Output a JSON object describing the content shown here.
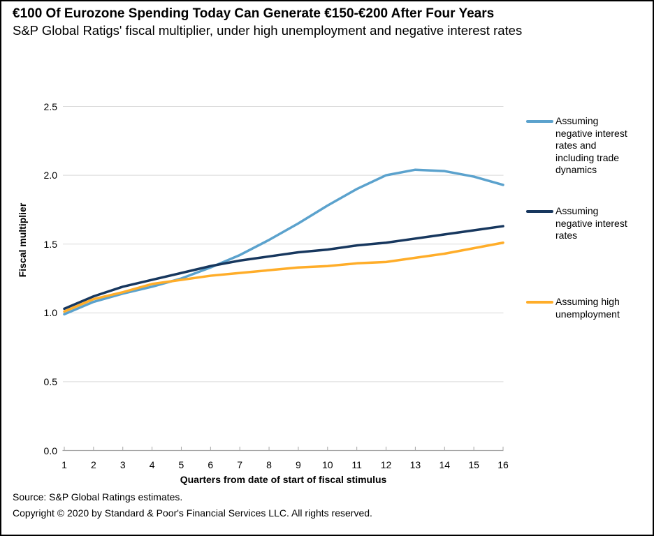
{
  "header": {
    "title": "€100 Of Eurozone Spending Today Can Generate €150-€200 After Four Years",
    "subtitle": "S&P Global Ratigs' fiscal multiplier, under high unemployment and negative interest rates"
  },
  "chart_data": {
    "type": "line",
    "xlabel": "Quarters from date of start of fiscal stimulus",
    "ylabel": "Fiscal multiplier",
    "x": [
      1,
      2,
      3,
      4,
      5,
      6,
      7,
      8,
      9,
      10,
      11,
      12,
      13,
      14,
      15,
      16
    ],
    "ylim": [
      0,
      2.5
    ],
    "y_ticks": [
      0,
      0.5,
      1,
      1.5,
      2,
      2.5
    ],
    "grid": true,
    "legend_position": "right",
    "series": [
      {
        "name": "Assuming negative interest rates and including trade dynamics",
        "color": "#5BA2CD",
        "values": [
          0.99,
          1.08,
          1.14,
          1.19,
          1.25,
          1.33,
          1.42,
          1.53,
          1.65,
          1.78,
          1.9,
          2.0,
          2.04,
          2.03,
          1.99,
          1.93
        ]
      },
      {
        "name": "Assuming negative interest rates",
        "color": "#17375E",
        "values": [
          1.03,
          1.12,
          1.19,
          1.24,
          1.29,
          1.34,
          1.38,
          1.41,
          1.44,
          1.46,
          1.49,
          1.51,
          1.54,
          1.57,
          1.6,
          1.63
        ]
      },
      {
        "name": "Assuming high unemployment",
        "color": "#FFAD29",
        "values": [
          1.01,
          1.1,
          1.15,
          1.21,
          1.24,
          1.27,
          1.29,
          1.31,
          1.33,
          1.34,
          1.36,
          1.37,
          1.4,
          1.43,
          1.47,
          1.51
        ]
      }
    ],
    "colors": {
      "gridline": "#D9D9D9",
      "axis": "#A6A6A6",
      "text": "#000000"
    }
  },
  "footer": {
    "source": "Source: S&P Global Ratings estimates.",
    "copyright": "Copyright © 2020 by Standard & Poor's Financial Services LLC. All rights reserved."
  }
}
